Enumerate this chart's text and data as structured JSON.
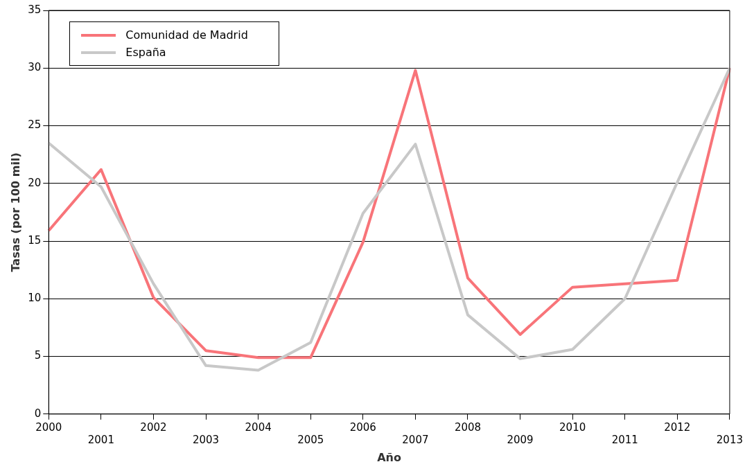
{
  "chart_data": {
    "type": "line",
    "xlabel": "Año",
    "ylabel": "Tasas (por 100 mil)",
    "categories": [
      "2000",
      "2001",
      "2002",
      "2003",
      "2004",
      "2005",
      "2006",
      "2007",
      "2008",
      "2009",
      "2010",
      "2011",
      "2012",
      "2013"
    ],
    "series": [
      {
        "name": "Comunidad de Madrid",
        "color": "#f87479",
        "values": [
          15.9,
          21.2,
          10.1,
          5.5,
          4.9,
          4.9,
          14.9,
          29.8,
          11.8,
          6.9,
          11.0,
          11.3,
          11.6,
          30.0
        ]
      },
      {
        "name": "España",
        "color": "#c8c8c8",
        "values": [
          23.5,
          19.7,
          11.3,
          4.2,
          3.8,
          6.2,
          17.4,
          23.4,
          8.6,
          4.8,
          5.6,
          10.0,
          20.1,
          30.0
        ]
      }
    ],
    "ylim": [
      0,
      35
    ],
    "yticks": [
      0,
      5,
      10,
      15,
      20,
      25,
      30,
      35
    ],
    "grid": "y",
    "legend": "top left",
    "marker": "none",
    "line_style": "solid"
  }
}
